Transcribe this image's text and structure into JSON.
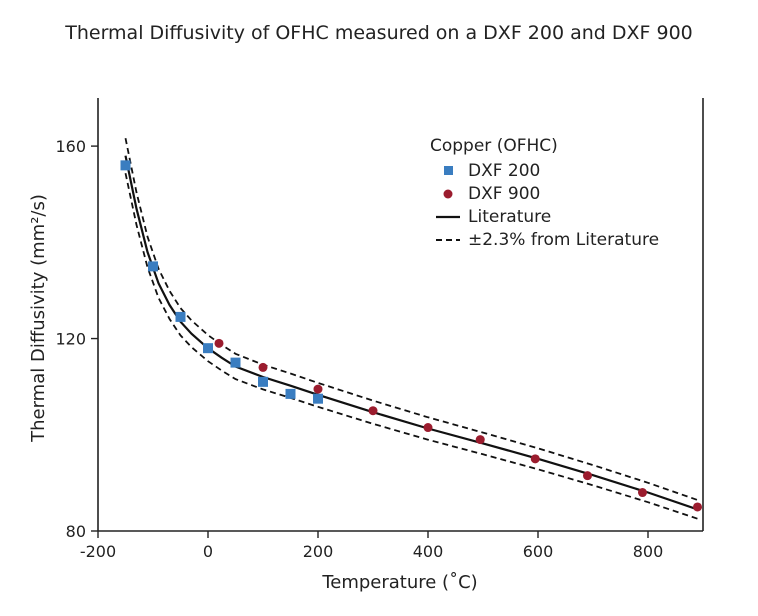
{
  "chart_data": {
    "type": "scatter",
    "title": "Thermal Diffusivity of OFHC measured on a DXF 200 and DXF 900",
    "xlabel": "Temperature (˚C)",
    "ylabel": "Thermal Diffusivity (mm²/s)",
    "xlim": [
      -200,
      900
    ],
    "ylim": [
      80,
      170
    ],
    "xticks": [
      -200,
      0,
      200,
      400,
      600,
      800
    ],
    "xtick_labels": [
      "-200",
      "0",
      "200",
      "400",
      "600",
      "800"
    ],
    "yticks": [
      80,
      120,
      160
    ],
    "ytick_labels": [
      "80",
      "120",
      "160"
    ],
    "legend_title": "Copper (OFHC)",
    "legend_position": "top-right",
    "grid": false,
    "series": [
      {
        "name": "DXF 200",
        "marker": "square",
        "color": "#3a7dc0",
        "x": [
          -150,
          -100,
          -50,
          0,
          50,
          100,
          150,
          200
        ],
        "y": [
          156,
          135,
          124.5,
          118,
          115,
          111,
          108.5,
          107.5
        ]
      },
      {
        "name": "DXF 900",
        "marker": "circle",
        "color": "#9b1c2e",
        "x": [
          20,
          100,
          200,
          300,
          400,
          495,
          595,
          690,
          790,
          890
        ],
        "y": [
          119,
          114,
          109.5,
          105,
          101.5,
          99,
          95,
          91.5,
          88,
          85
        ]
      },
      {
        "name": "Literature",
        "line": "solid",
        "color": "#111111",
        "x": [
          -150,
          -130,
          -110,
          -90,
          -70,
          -50,
          -30,
          -10,
          0,
          25,
          50,
          100,
          150,
          200,
          300,
          400,
          500,
          600,
          700,
          800,
          890
        ],
        "y": [
          158,
          147,
          138,
          131.5,
          127,
          123.5,
          121,
          119,
          118,
          116,
          114.2,
          112,
          110.2,
          108.3,
          104.7,
          101.3,
          98.2,
          95,
          91.6,
          88,
          84.5
        ]
      },
      {
        "name": "±2.3% from Literature",
        "line": "dashed",
        "color": "#111111",
        "band_percent": 2.3
      }
    ]
  }
}
